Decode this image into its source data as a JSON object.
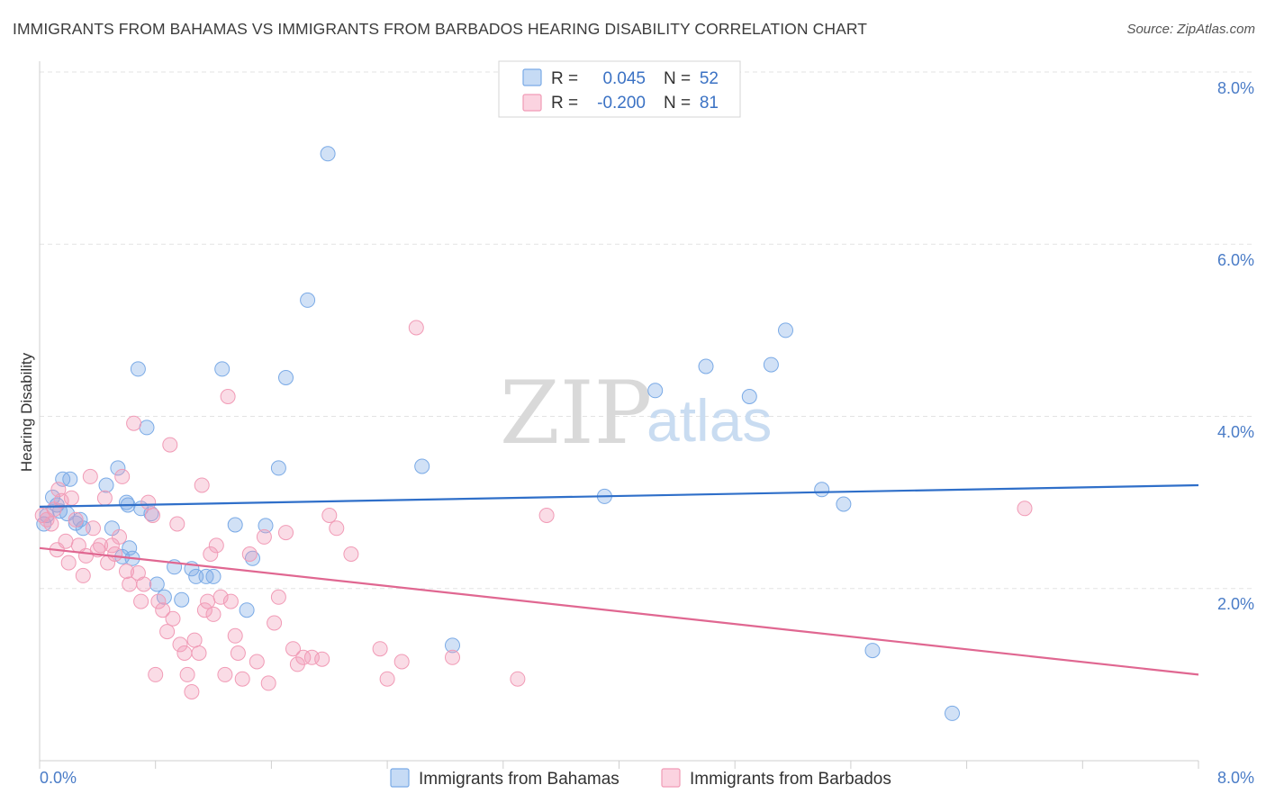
{
  "title": "IMMIGRANTS FROM BAHAMAS VS IMMIGRANTS FROM BARBADOS HEARING DISABILITY CORRELATION CHART",
  "source": "Source: ZipAtlas.com",
  "watermark": {
    "part1": "ZIP",
    "part2": "atlas"
  },
  "legend": {
    "r_label": "R =",
    "n_label": "N =",
    "rows": [
      {
        "r": "0.045",
        "n": "52",
        "color": "#7aaae6"
      },
      {
        "r": "-0.200",
        "n": "81",
        "color": "#f19bb6"
      }
    ]
  },
  "bottom_legend": {
    "items": [
      {
        "label": "Immigrants from Bahamas",
        "color": "#7aaae6"
      },
      {
        "label": "Immigrants from Barbados",
        "color": "#f19bb6"
      }
    ]
  },
  "chart_data": {
    "type": "scatter",
    "title": "IMMIGRANTS FROM BAHAMAS VS IMMIGRANTS FROM BARBADOS HEARING DISABILITY CORRELATION CHART",
    "xlabel": "",
    "ylabel": "Hearing Disability",
    "xlim": [
      0,
      8
    ],
    "ylim": [
      0,
      8.2
    ],
    "x_tick_labels": [
      "0.0%",
      "8.0%"
    ],
    "y_ticks": [
      2,
      4,
      6,
      8
    ],
    "y_tick_labels": [
      "2.0%",
      "4.0%",
      "6.0%",
      "8.0%"
    ],
    "grid": true,
    "series": [
      {
        "name": "Immigrants from Bahamas",
        "color": "#7aaae6",
        "line_color": "#2f6fc9",
        "trend": {
          "x": [
            0,
            8
          ],
          "y": [
            2.95,
            3.2
          ]
        },
        "points": [
          [
            0.05,
            2.85
          ],
          [
            0.09,
            3.06
          ],
          [
            0.12,
            2.97
          ],
          [
            0.16,
            3.27
          ],
          [
            0.19,
            2.87
          ],
          [
            0.21,
            3.27
          ],
          [
            0.25,
            2.76
          ],
          [
            0.28,
            2.8
          ],
          [
            0.3,
            2.7
          ],
          [
            0.46,
            3.2
          ],
          [
            0.5,
            2.7
          ],
          [
            0.54,
            3.4
          ],
          [
            0.57,
            2.37
          ],
          [
            0.6,
            3.0
          ],
          [
            0.61,
            2.97
          ],
          [
            0.62,
            2.47
          ],
          [
            0.64,
            2.35
          ],
          [
            0.68,
            4.55
          ],
          [
            0.7,
            2.93
          ],
          [
            0.74,
            3.87
          ],
          [
            0.77,
            2.87
          ],
          [
            0.81,
            2.05
          ],
          [
            0.86,
            1.9
          ],
          [
            0.93,
            2.25
          ],
          [
            0.98,
            1.87
          ],
          [
            1.05,
            2.23
          ],
          [
            1.08,
            2.14
          ],
          [
            1.15,
            2.14
          ],
          [
            1.2,
            2.14
          ],
          [
            1.26,
            4.55
          ],
          [
            1.35,
            2.74
          ],
          [
            1.43,
            1.75
          ],
          [
            1.47,
            2.35
          ],
          [
            1.56,
            2.73
          ],
          [
            1.65,
            3.4
          ],
          [
            1.7,
            4.45
          ],
          [
            1.85,
            5.35
          ],
          [
            1.99,
            7.05
          ],
          [
            2.64,
            3.42
          ],
          [
            2.85,
            1.34
          ],
          [
            3.9,
            3.07
          ],
          [
            4.25,
            4.3
          ],
          [
            4.6,
            4.58
          ],
          [
            4.9,
            4.23
          ],
          [
            5.05,
            4.6
          ],
          [
            5.15,
            5.0
          ],
          [
            5.4,
            3.15
          ],
          [
            5.55,
            2.98
          ],
          [
            5.75,
            1.28
          ],
          [
            6.3,
            0.55
          ],
          [
            0.03,
            2.75
          ],
          [
            0.14,
            2.9
          ]
        ]
      },
      {
        "name": "Immigrants from Barbados",
        "color": "#f19bb6",
        "line_color": "#e06791",
        "trend": {
          "x": [
            0,
            8
          ],
          "y": [
            2.47,
            1.0
          ]
        },
        "points": [
          [
            0.02,
            2.85
          ],
          [
            0.05,
            2.8
          ],
          [
            0.08,
            2.75
          ],
          [
            0.1,
            2.92
          ],
          [
            0.13,
            3.15
          ],
          [
            0.15,
            3.02
          ],
          [
            0.18,
            2.55
          ],
          [
            0.2,
            2.3
          ],
          [
            0.22,
            3.05
          ],
          [
            0.25,
            2.8
          ],
          [
            0.27,
            2.5
          ],
          [
            0.3,
            2.15
          ],
          [
            0.32,
            2.38
          ],
          [
            0.35,
            3.3
          ],
          [
            0.37,
            2.7
          ],
          [
            0.4,
            2.45
          ],
          [
            0.42,
            2.5
          ],
          [
            0.45,
            3.05
          ],
          [
            0.47,
            2.3
          ],
          [
            0.5,
            2.5
          ],
          [
            0.52,
            2.4
          ],
          [
            0.55,
            2.6
          ],
          [
            0.57,
            3.3
          ],
          [
            0.6,
            2.2
          ],
          [
            0.62,
            2.05
          ],
          [
            0.65,
            3.92
          ],
          [
            0.68,
            2.18
          ],
          [
            0.7,
            1.85
          ],
          [
            0.72,
            2.05
          ],
          [
            0.75,
            3.0
          ],
          [
            0.78,
            2.85
          ],
          [
            0.8,
            1.0
          ],
          [
            0.82,
            1.85
          ],
          [
            0.85,
            1.75
          ],
          [
            0.88,
            1.5
          ],
          [
            0.9,
            3.67
          ],
          [
            0.92,
            1.65
          ],
          [
            0.95,
            2.75
          ],
          [
            0.97,
            1.35
          ],
          [
            1.0,
            1.25
          ],
          [
            1.02,
            1.0
          ],
          [
            1.05,
            0.8
          ],
          [
            1.07,
            1.4
          ],
          [
            1.1,
            1.25
          ],
          [
            1.12,
            3.2
          ],
          [
            1.14,
            1.75
          ],
          [
            1.16,
            1.85
          ],
          [
            1.18,
            2.4
          ],
          [
            1.2,
            1.7
          ],
          [
            1.22,
            2.5
          ],
          [
            1.25,
            1.9
          ],
          [
            1.28,
            1.0
          ],
          [
            1.3,
            4.23
          ],
          [
            1.32,
            1.85
          ],
          [
            1.35,
            1.45
          ],
          [
            1.37,
            1.25
          ],
          [
            1.4,
            0.95
          ],
          [
            1.45,
            2.4
          ],
          [
            1.5,
            1.15
          ],
          [
            1.55,
            2.6
          ],
          [
            1.58,
            0.9
          ],
          [
            1.62,
            1.6
          ],
          [
            1.65,
            1.9
          ],
          [
            1.7,
            2.65
          ],
          [
            1.75,
            1.3
          ],
          [
            1.78,
            1.12
          ],
          [
            1.82,
            1.2
          ],
          [
            1.88,
            1.2
          ],
          [
            1.95,
            1.18
          ],
          [
            2.0,
            2.85
          ],
          [
            2.05,
            2.7
          ],
          [
            2.15,
            2.4
          ],
          [
            2.35,
            1.3
          ],
          [
            2.4,
            0.95
          ],
          [
            2.5,
            1.15
          ],
          [
            2.6,
            5.03
          ],
          [
            2.85,
            1.2
          ],
          [
            3.3,
            0.95
          ],
          [
            3.5,
            2.85
          ],
          [
            6.8,
            2.93
          ],
          [
            0.12,
            2.45
          ]
        ]
      }
    ]
  }
}
